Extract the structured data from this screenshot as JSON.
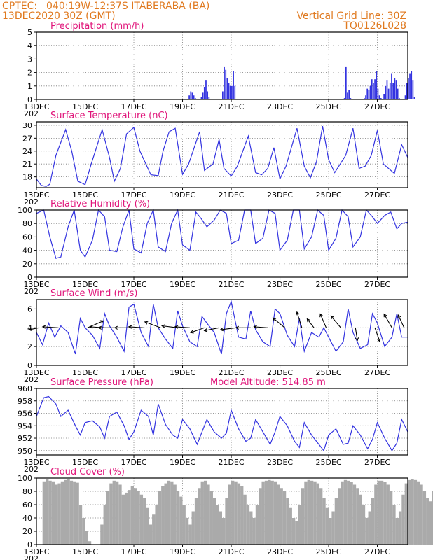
{
  "header": {
    "source": "CPTEC:",
    "location": "040:19W-12:37S  ITABERABA (BA)",
    "date": "13DEC2020 30Z (GMT)",
    "grid_note": "Vertical Grid Line: 30Z",
    "code": "TQ0126L028"
  },
  "x_axis": {
    "ticks": [
      "13DEC",
      "15DEC",
      "17DEC",
      "19DEC",
      "21DEC",
      "23DEC",
      "25DEC",
      "27DEC"
    ],
    "tick_days": [
      0,
      2,
      4,
      6,
      8,
      10,
      12,
      14
    ],
    "year_label": "202",
    "range_days": [
      0,
      15.25
    ]
  },
  "colors": {
    "series": "#3333e0",
    "cloud": "#aaaaaa",
    "title": "#e0157a",
    "header": "#e07a20"
  },
  "chart_data": [
    {
      "type": "bar",
      "title": "Precipitation (mm/h)",
      "ylim": [
        0,
        5
      ],
      "yticks": [
        0,
        1,
        2,
        3,
        4,
        5
      ],
      "grid": true,
      "step_days": 0.0625,
      "values": [
        0,
        0.05,
        0.05,
        0,
        0,
        0,
        0,
        0,
        0,
        0,
        0,
        0,
        0,
        0,
        0,
        0,
        0,
        0,
        0,
        0,
        0,
        0,
        0,
        0,
        0,
        0,
        0,
        0,
        0,
        0,
        0,
        0,
        0,
        0,
        0,
        0,
        0,
        0,
        0,
        0,
        0,
        0,
        0,
        0,
        0,
        0,
        0,
        0,
        0,
        0,
        0,
        0,
        0,
        0,
        0,
        0,
        0,
        0,
        0,
        0,
        0,
        0,
        0,
        0,
        0,
        0,
        0,
        0,
        0,
        0,
        0,
        0,
        0,
        0,
        0,
        0,
        0,
        0,
        0,
        0,
        0,
        0,
        0,
        0,
        0,
        0,
        0,
        0,
        0,
        0,
        0,
        0,
        0,
        0,
        0,
        0,
        0,
        0,
        0,
        0.05,
        0.3,
        0.6,
        0.5,
        0.3,
        0.1,
        0,
        0,
        0,
        0.2,
        0.5,
        0.9,
        1.4,
        0.6,
        0.2,
        0,
        0,
        0,
        0,
        0,
        0,
        0,
        0,
        0.6,
        2.4,
        2.2,
        1.6,
        1.2,
        1.0,
        1.0,
        2.1,
        1.0,
        0,
        0,
        0,
        0,
        0,
        0,
        0,
        0,
        0,
        0,
        0,
        0,
        0,
        0,
        0,
        0,
        0,
        0,
        0,
        0,
        0,
        0,
        0,
        0,
        0,
        0,
        0,
        0,
        0,
        0,
        0,
        0,
        0,
        0,
        0,
        0,
        0,
        0,
        0,
        0,
        0,
        0,
        0,
        0,
        0,
        0,
        0,
        0,
        0,
        0,
        0,
        0,
        0,
        0,
        0,
        0,
        0,
        0,
        0,
        0,
        0,
        0,
        0.05,
        0.05,
        0.05,
        0.05,
        0.05,
        0,
        0,
        0.05,
        0.05,
        0.1,
        2.4,
        0.5,
        0.7,
        0.1,
        0,
        0,
        0,
        0,
        0,
        0,
        0,
        0,
        0.1,
        0.3,
        0.8,
        0.7,
        1.0,
        1.5,
        1.2,
        1.5,
        2.1,
        0.8,
        0.3,
        0.1,
        0,
        0.4,
        1.0,
        1.4,
        0.8,
        1.2,
        1.9,
        1.2,
        1.6,
        1.4,
        0.8,
        0.1,
        0,
        0,
        0,
        0.3,
        1.2,
        1.6,
        1.9,
        2.1,
        1.4,
        0.2,
        0
      ]
    },
    {
      "type": "line",
      "title": "Surface Temperature (nC)",
      "ylim": [
        15.5,
        30.8
      ],
      "yticks": [
        18,
        21,
        24,
        27,
        30
      ],
      "grid": true,
      "x": [
        0,
        0.2,
        0.4,
        0.55,
        0.8,
        1.2,
        1.45,
        1.7,
        2.0,
        2.25,
        2.7,
        3.0,
        3.2,
        3.45,
        3.7,
        4.0,
        4.25,
        4.7,
        5.0,
        5.2,
        5.45,
        5.7,
        6.0,
        6.25,
        6.7,
        6.9,
        7.25,
        7.5,
        7.7,
        8.0,
        8.25,
        8.7,
        9.0,
        9.25,
        9.5,
        9.75,
        10.0,
        10.25,
        10.7,
        11.0,
        11.25,
        11.5,
        11.75,
        12.0,
        12.25,
        12.7,
        13.0,
        13.25,
        13.5,
        13.75,
        14.0,
        14.25,
        14.7,
        15.0,
        15.25
      ],
      "series": [
        {
          "values": [
            17.5,
            16,
            15.8,
            16.3,
            23,
            29,
            24,
            17,
            16.2,
            21,
            29,
            22.5,
            17,
            20,
            28,
            29.5,
            24,
            18.5,
            18.3,
            24,
            28.5,
            29.3,
            18.6,
            21,
            28.5,
            19.5,
            21,
            26.7,
            20,
            18.2,
            20.5,
            27.5,
            19,
            18.5,
            20,
            24.8,
            17.5,
            20.5,
            29.3,
            20.5,
            17.8,
            21.5,
            29.8,
            22,
            19,
            23,
            29.3,
            20,
            20.5,
            23,
            28.8,
            21,
            18.8,
            25.5,
            22.5
          ]
        }
      ]
    },
    {
      "type": "line",
      "title": "Relative Humidity (%)",
      "ylim": [
        0,
        100
      ],
      "yticks": [
        0,
        20,
        40,
        60,
        80,
        100
      ],
      "grid": true,
      "x": [
        0,
        0.3,
        0.55,
        0.8,
        1.0,
        1.3,
        1.55,
        1.8,
        2.0,
        2.3,
        2.55,
        2.8,
        3.0,
        3.3,
        3.55,
        3.8,
        4.0,
        4.3,
        4.55,
        4.8,
        5.0,
        5.3,
        5.55,
        5.8,
        6.0,
        6.3,
        6.55,
        6.75,
        7.0,
        7.3,
        7.55,
        7.8,
        8.0,
        8.3,
        8.55,
        8.8,
        9.0,
        9.3,
        9.55,
        9.8,
        10.0,
        10.3,
        10.55,
        10.8,
        11.0,
        11.3,
        11.55,
        11.8,
        12.0,
        12.3,
        12.55,
        12.8,
        13.0,
        13.3,
        13.55,
        13.8,
        14.0,
        14.3,
        14.55,
        14.8,
        15.0,
        15.25
      ],
      "series": [
        {
          "values": [
            95,
            100,
            60,
            28,
            30,
            75,
            100,
            40,
            30,
            55,
            100,
            90,
            40,
            38,
            75,
            100,
            42,
            36,
            80,
            100,
            45,
            38,
            80,
            100,
            48,
            40,
            97,
            88,
            75,
            85,
            100,
            95,
            50,
            55,
            100,
            100,
            50,
            58,
            100,
            95,
            40,
            55,
            100,
            100,
            42,
            60,
            100,
            92,
            40,
            58,
            100,
            90,
            45,
            60,
            100,
            90,
            80,
            92,
            97,
            72,
            80,
            82
          ]
        }
      ]
    },
    {
      "type": "line",
      "title": "Surface Wind (m/s)",
      "ylim": [
        0,
        7
      ],
      "yticks": [
        0,
        2,
        4,
        6
      ],
      "grid": true,
      "x": [
        0,
        0.25,
        0.5,
        0.75,
        1.0,
        1.3,
        1.6,
        1.8,
        2.0,
        2.3,
        2.6,
        2.8,
        3.0,
        3.3,
        3.6,
        3.8,
        4.0,
        4.3,
        4.6,
        4.8,
        5.0,
        5.3,
        5.6,
        5.8,
        6.0,
        6.3,
        6.6,
        6.8,
        7.0,
        7.3,
        7.6,
        7.8,
        8.0,
        8.3,
        8.6,
        8.8,
        9.0,
        9.3,
        9.6,
        9.8,
        10.0,
        10.3,
        10.6,
        10.8,
        11.0,
        11.3,
        11.6,
        11.8,
        12.0,
        12.3,
        12.6,
        12.8,
        13.0,
        13.3,
        13.6,
        13.8,
        14.0,
        14.3,
        14.6,
        14.8,
        15.0,
        15.25
      ],
      "series": [
        {
          "values": [
            3.5,
            2.2,
            4.5,
            3.0,
            4.2,
            3.5,
            1.2,
            5.0,
            4.0,
            3.2,
            1.8,
            5.5,
            4.2,
            3.0,
            1.5,
            6.2,
            6.5,
            3.5,
            2.0,
            6.5,
            4.0,
            2.8,
            1.8,
            5.8,
            4.2,
            2.5,
            2.0,
            5.2,
            4.5,
            3.5,
            1.2,
            5.5,
            6.8,
            3.0,
            2.8,
            5.8,
            3.8,
            2.5,
            2.0,
            6.0,
            5.5,
            3.2,
            2.0,
            5.0,
            1.5,
            3.5,
            3.0,
            4.0,
            3.0,
            1.5,
            2.5,
            6.0,
            3.5,
            1.8,
            2.2,
            5.5,
            4.5,
            2.0,
            3.0,
            5.5,
            3.0,
            3.0
          ]
        }
      ],
      "wind_vectors": [
        {
          "day": 0.1,
          "u": -1,
          "v": -0.2
        },
        {
          "day": 0.9,
          "u": -1.6,
          "v": 0.1
        },
        {
          "day": 2.1,
          "u": 1.6,
          "v": 0.7
        },
        {
          "day": 2.8,
          "u": -1.5,
          "v": 0.1
        },
        {
          "day": 3.2,
          "u": -1.6,
          "v": 0
        },
        {
          "day": 3.9,
          "u": -1.7,
          "v": 0
        },
        {
          "day": 4.4,
          "u": -1.5,
          "v": 0.1
        },
        {
          "day": 5.1,
          "u": -1.6,
          "v": 0.6
        },
        {
          "day": 5.8,
          "u": -1.6,
          "v": 0.2
        },
        {
          "day": 6.3,
          "u": -1.5,
          "v": 0.1
        },
        {
          "day": 6.9,
          "u": -1.4,
          "v": -0.5
        },
        {
          "day": 7.5,
          "u": -1.5,
          "v": -0.3
        },
        {
          "day": 8.2,
          "u": -1.6,
          "v": -0.2
        },
        {
          "day": 8.8,
          "u": -1.5,
          "v": 0
        },
        {
          "day": 9.5,
          "u": -1.4,
          "v": 0.1
        },
        {
          "day": 10.2,
          "u": -1.2,
          "v": 1.0
        },
        {
          "day": 10.9,
          "u": -0.5,
          "v": 1.6
        },
        {
          "day": 11.4,
          "u": -0.7,
          "v": 0.9
        },
        {
          "day": 11.9,
          "u": -0.6,
          "v": 1.4
        },
        {
          "day": 12.5,
          "u": -1.0,
          "v": 1.2
        },
        {
          "day": 13.1,
          "u": 0.2,
          "v": -1.3
        },
        {
          "day": 13.9,
          "u": 0.5,
          "v": -1.4
        },
        {
          "day": 14.6,
          "u": -0.8,
          "v": 1.4
        },
        {
          "day": 15.1,
          "u": -0.6,
          "v": 1.3
        }
      ]
    },
    {
      "type": "line",
      "title": "Surface Pressure (hPa)",
      "subtitle": "Model Altitude: 514.85 m",
      "ylim": [
        949.3,
        960
      ],
      "yticks": [
        950,
        952,
        954,
        956,
        958,
        960
      ],
      "grid": true,
      "x": [
        0,
        0.3,
        0.5,
        0.8,
        1.0,
        1.3,
        1.6,
        1.8,
        2.0,
        2.3,
        2.6,
        2.8,
        3.0,
        3.3,
        3.6,
        3.8,
        4.0,
        4.3,
        4.6,
        4.8,
        5.0,
        5.3,
        5.6,
        5.8,
        6.0,
        6.3,
        6.6,
        6.8,
        7.0,
        7.3,
        7.6,
        7.8,
        8.0,
        8.3,
        8.6,
        8.8,
        9.0,
        9.3,
        9.6,
        9.8,
        10.0,
        10.3,
        10.6,
        10.8,
        11.0,
        11.3,
        11.6,
        11.8,
        12.0,
        12.3,
        12.6,
        12.8,
        13.0,
        13.3,
        13.6,
        13.8,
        14.0,
        14.3,
        14.6,
        14.8,
        15.0,
        15.25
      ],
      "series": [
        {
          "values": [
            955.5,
            958.5,
            958.7,
            957.5,
            955.5,
            956.5,
            954.0,
            952.5,
            954.5,
            954.8,
            953.8,
            952.0,
            955.5,
            956.2,
            954.0,
            951.8,
            953.0,
            956.5,
            955.5,
            952.5,
            957.5,
            954.2,
            952.5,
            952.0,
            955.0,
            953.5,
            951.0,
            953.0,
            955.0,
            953.0,
            952.0,
            952.8,
            956.5,
            953.5,
            951.5,
            952.0,
            955.0,
            953.0,
            951.0,
            953.0,
            955.5,
            954.0,
            951.5,
            950.5,
            954.5,
            952.5,
            951.0,
            950.0,
            952.5,
            953.5,
            951.0,
            951.2,
            954.0,
            952.5,
            950.3,
            951.8,
            954.5,
            952.0,
            950.0,
            951.2,
            955.0,
            953.0
          ]
        }
      ]
    },
    {
      "type": "bar",
      "title": "Cloud Cover (%)",
      "ylim": [
        0,
        100
      ],
      "yticks": [
        0,
        20,
        40,
        60,
        80,
        100
      ],
      "grid": true,
      "step_days": 0.125,
      "values": [
        0,
        0,
        95,
        98,
        96,
        95,
        90,
        92,
        95,
        97,
        98,
        96,
        95,
        93,
        60,
        40,
        20,
        5,
        0,
        0,
        0,
        30,
        60,
        80,
        92,
        96,
        95,
        90,
        75,
        78,
        82,
        88,
        85,
        80,
        75,
        70,
        55,
        30,
        45,
        60,
        80,
        88,
        92,
        96,
        95,
        90,
        80,
        72,
        60,
        40,
        30,
        50,
        70,
        85,
        95,
        96,
        90,
        80,
        70,
        60,
        50,
        40,
        70,
        90,
        96,
        95,
        92,
        88,
        75,
        60,
        50,
        40,
        60,
        85,
        95,
        96,
        97,
        96,
        95,
        90,
        85,
        80,
        70,
        55,
        40,
        35,
        60,
        85,
        95,
        97,
        96,
        95,
        92,
        85,
        70,
        55,
        40,
        50,
        70,
        85,
        95,
        97,
        96,
        94,
        90,
        85,
        75,
        60,
        40,
        50,
        70,
        90,
        96,
        96,
        94,
        90,
        80,
        60,
        40,
        50,
        75,
        92,
        97,
        98,
        97,
        95,
        90,
        80,
        70,
        65,
        80,
        92,
        97,
        98,
        98,
        97,
        96,
        95,
        93,
        92,
        92,
        92,
        96,
        98,
        98,
        97,
        95,
        92,
        90,
        88,
        96,
        98,
        98,
        96,
        94,
        93,
        95,
        97,
        98,
        97,
        96,
        97,
        98,
        98,
        97,
        98,
        99,
        98,
        97,
        98,
        98,
        99,
        99,
        98,
        97,
        98,
        98,
        98,
        99,
        99,
        98,
        98,
        98,
        97,
        98,
        98,
        99,
        99,
        98
      ]
    }
  ]
}
